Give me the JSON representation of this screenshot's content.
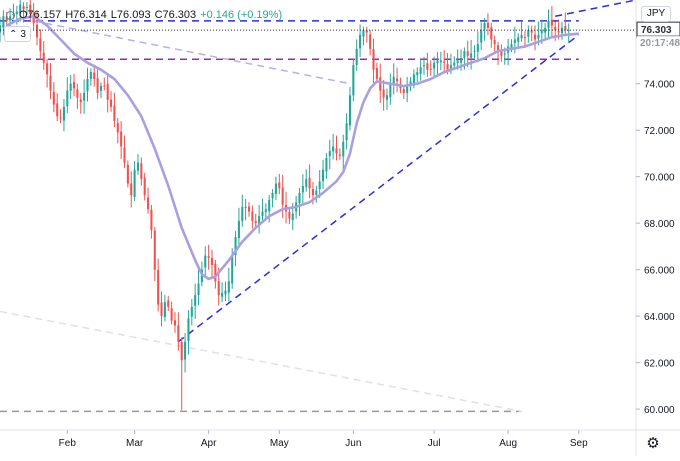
{
  "header": {
    "open": "O76.157",
    "high": "H76.314",
    "low": "L76.093",
    "close": "C76.303",
    "change": "+0.146 (+0.19%)",
    "collapse_count": "3",
    "currency": "JPY"
  },
  "price_label": {
    "value": "76.303",
    "color": "#2a2e39"
  },
  "countdown_label": {
    "value": "20:17:48",
    "color": "#9598a1"
  },
  "colors": {
    "up": "#26a69a",
    "down": "#ef5350",
    "ma": "#a8a0e0",
    "trend": "#2a2fd6",
    "level_purple": "#9c27b0",
    "level_blue": "#2a2fd6",
    "faint_trend": "#b4b0e8",
    "axis_text": "#131722"
  },
  "chart_data": {
    "type": "candlestick",
    "symbol_quote": "JPY",
    "yaxis": {
      "ticks": [
        "60.000",
        "62.000",
        "64.000",
        "66.000",
        "68.000",
        "70.000",
        "72.000",
        "74.000",
        "76.000"
      ],
      "range": [
        59.1,
        77.6
      ]
    },
    "xaxis": {
      "ticks": [
        "Feb",
        "Mar",
        "Apr",
        "May",
        "Jun",
        "Jul",
        "Aug",
        "Sep"
      ],
      "ticks_index": [
        20,
        40,
        62,
        83,
        105,
        129,
        151,
        172
      ],
      "range_index": [
        0,
        189
      ]
    },
    "last_price": 76.303,
    "close": [
      76.5,
      76.9,
      76.7,
      76.9,
      77.0,
      77.1,
      77.4,
      77.2,
      77.3,
      77.0,
      76.6,
      76.0,
      75.4,
      74.9,
      74.4,
      73.7,
      73.1,
      72.6,
      72.5,
      73.0,
      73.7,
      74.0,
      73.8,
      73.4,
      73.2,
      73.6,
      74.2,
      74.5,
      74.2,
      73.6,
      73.9,
      73.9,
      73.3,
      73.0,
      72.4,
      71.9,
      71.3,
      70.6,
      69.7,
      69.2,
      70.3,
      70.6,
      69.9,
      69.2,
      68.6,
      67.7,
      66.0,
      64.5,
      64.0,
      64.6,
      64.4,
      63.8,
      63.6,
      62.9,
      62.1,
      62.9,
      63.9,
      64.4,
      64.9,
      65.4,
      66.0,
      66.6,
      66.5,
      66.2,
      65.5,
      64.9,
      65.0,
      65.1,
      65.5,
      66.6,
      67.4,
      68.1,
      68.7,
      68.7,
      68.5,
      68.1,
      68.0,
      68.3,
      68.5,
      68.6,
      69.0,
      69.3,
      69.7,
      69.5,
      68.8,
      68.5,
      68.2,
      68.4,
      68.9,
      69.3,
      69.6,
      69.9,
      69.5,
      69.2,
      69.4,
      69.8,
      70.3,
      70.8,
      71.1,
      71.3,
      71.0,
      70.9,
      71.5,
      72.3,
      73.5,
      74.8,
      75.5,
      76.1,
      76.3,
      76.2,
      75.5,
      74.6,
      74.2,
      73.7,
      73.4,
      73.5,
      74.0,
      74.3,
      74.1,
      73.8,
      73.6,
      73.9,
      74.1,
      74.4,
      74.5,
      74.7,
      74.8,
      74.6,
      74.6,
      74.9,
      75.0,
      75.0,
      74.9,
      74.6,
      74.8,
      74.9,
      75.0,
      75.1,
      75.4,
      75.2,
      75.3,
      75.4,
      75.7,
      76.3,
      76.6,
      76.4,
      75.9,
      75.7,
      75.4,
      75.2,
      75.3,
      75.6,
      75.7,
      75.9,
      76.0,
      76.1,
      76.0,
      76.3,
      76.2,
      75.9,
      76.1,
      76.3,
      76.4,
      76.7,
      76.5,
      76.3,
      76.2,
      76.4,
      76.3,
      76.303
    ],
    "moving_average": {
      "points": [
        [
          2,
          76.5
        ],
        [
          6,
          76.8
        ],
        [
          10,
          76.9
        ],
        [
          14,
          76.5
        ],
        [
          18,
          75.9
        ],
        [
          22,
          75.3
        ],
        [
          26,
          74.9
        ],
        [
          30,
          74.6
        ],
        [
          34,
          74.2
        ],
        [
          38,
          73.5
        ],
        [
          42,
          72.6
        ],
        [
          46,
          71.2
        ],
        [
          50,
          69.6
        ],
        [
          54,
          67.8
        ],
        [
          58,
          66.4
        ],
        [
          60,
          65.8
        ],
        [
          62,
          65.6
        ],
        [
          64,
          65.7
        ],
        [
          68,
          66.4
        ],
        [
          72,
          67.2
        ],
        [
          76,
          67.8
        ],
        [
          80,
          68.3
        ],
        [
          84,
          68.6
        ],
        [
          88,
          68.7
        ],
        [
          92,
          68.9
        ],
        [
          96,
          69.3
        ],
        [
          100,
          69.8
        ],
        [
          102,
          70.2
        ],
        [
          104,
          71.0
        ],
        [
          106,
          72.3
        ],
        [
          108,
          73.2
        ],
        [
          110,
          73.8
        ],
        [
          112,
          74.1
        ],
        [
          116,
          74.0
        ],
        [
          120,
          73.9
        ],
        [
          124,
          74.0
        ],
        [
          128,
          74.2
        ],
        [
          132,
          74.5
        ],
        [
          136,
          74.7
        ],
        [
          140,
          74.9
        ],
        [
          144,
          75.1
        ],
        [
          148,
          75.4
        ],
        [
          152,
          75.5
        ],
        [
          156,
          75.6
        ],
        [
          160,
          75.8
        ],
        [
          164,
          76.0
        ],
        [
          168,
          76.1
        ],
        [
          172,
          76.15
        ]
      ]
    },
    "levels": [
      {
        "name": "resistance",
        "price": 76.7,
        "style": "dashed",
        "color": "#2a2fd6",
        "range_index": [
          0,
          172
        ]
      },
      {
        "name": "support",
        "price": 75.05,
        "style": "dashed",
        "color": "#9c27b0",
        "range_index": [
          0,
          172
        ]
      },
      {
        "name": "march-low",
        "price": 59.9,
        "style": "dashed",
        "color": "#9598a1",
        "range_index": [
          0,
          155
        ]
      }
    ],
    "trendlines": [
      {
        "name": "rising-support",
        "from": [
          53,
          62.9
        ],
        "to": [
          172,
          76.1
        ],
        "style": "dashed",
        "color": "#2a2fd6"
      },
      {
        "name": "falling-resistance",
        "from": [
          10,
          76.7
        ],
        "to": [
          104,
          74.0
        ],
        "style": "dashed",
        "color": "#b4b0e8"
      },
      {
        "name": "long-faint-line",
        "from": [
          0,
          64.2
        ],
        "to": [
          155,
          59.9
        ],
        "style": "dashed",
        "color": "#e0e0e8"
      },
      {
        "name": "upper-right-line",
        "from": [
          165,
          76.9
        ],
        "to": [
          189,
          77.6
        ],
        "style": "dashed",
        "color": "#2a2fd6"
      }
    ],
    "grid": false,
    "legend": "none"
  }
}
